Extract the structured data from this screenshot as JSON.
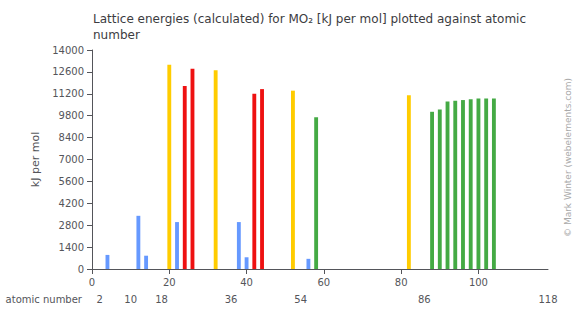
{
  "chart_data": {
    "type": "bar",
    "title": "Lattice energies (calculated) for MO₂ [kJ per mol] plotted against atomic\nnumber",
    "ylabel": "kJ per mol",
    "xlabel": "atomic number",
    "x": [
      4,
      12,
      14,
      20,
      22,
      24,
      26,
      32,
      38,
      40,
      42,
      44,
      52,
      56,
      58,
      82,
      88,
      90,
      92,
      94,
      96,
      98,
      100,
      102,
      104
    ],
    "values": [
      900,
      3400,
      850,
      13050,
      3000,
      11700,
      12800,
      12700,
      3000,
      750,
      11200,
      11500,
      11400,
      650,
      9700,
      11100,
      10050,
      10200,
      10700,
      10750,
      10800,
      10850,
      10900,
      10900,
      10900
    ],
    "colors": [
      "#6699ff",
      "#6699ff",
      "#6699ff",
      "#ffcc00",
      "#6699ff",
      "#ee1111",
      "#ee1111",
      "#ffcc00",
      "#6699ff",
      "#6699ff",
      "#ee1111",
      "#ee1111",
      "#ffcc00",
      "#6699ff",
      "#44aa44",
      "#ffcc00",
      "#44aa44",
      "#44aa44",
      "#44aa44",
      "#44aa44",
      "#44aa44",
      "#44aa44",
      "#44aa44",
      "#44aa44",
      "#44aa44"
    ],
    "xlim": [
      0,
      118
    ],
    "xticks": [
      0,
      20,
      40,
      60,
      80,
      100
    ],
    "ylim": [
      0,
      14000
    ],
    "yticks": [
      0,
      1400,
      2800,
      4200,
      5600,
      7000,
      8400,
      9800,
      11200,
      12600,
      14000
    ],
    "x2lim": [
      0,
      118
    ],
    "x2ticks": [
      2,
      10,
      18,
      36,
      54,
      86,
      118
    ],
    "grid": false,
    "annotations": [
      "© Mark Winter (webelements.com)"
    ]
  }
}
